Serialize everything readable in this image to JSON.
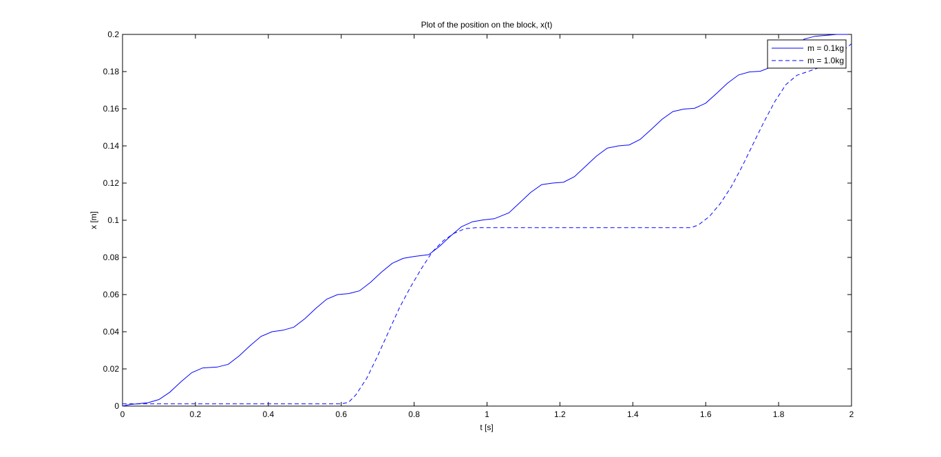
{
  "chart_data": {
    "type": "line",
    "title": "Plot of the position on the block, x(t)",
    "xlabel": "t [s]",
    "ylabel": "x [m]",
    "xlim": [
      0,
      2
    ],
    "ylim": [
      0,
      0.2
    ],
    "xticks": [
      "0",
      "0.2",
      "0.4",
      "0.6",
      "0.8",
      "1",
      "1.2",
      "1.4",
      "1.6",
      "1.8",
      "2"
    ],
    "yticks": [
      "0",
      "0.02",
      "0.04",
      "0.06",
      "0.08",
      "0.1",
      "0.12",
      "0.14",
      "0.16",
      "0.18",
      "0.2"
    ],
    "grid": false,
    "legend_position": "top-right",
    "series": [
      {
        "name": "m = 0.1kg",
        "style": "solid",
        "color": "#0000ff",
        "x": [
          0,
          0.02,
          0.04,
          0.07,
          0.1,
          0.13,
          0.16,
          0.19,
          0.22,
          0.26,
          0.29,
          0.32,
          0.35,
          0.38,
          0.41,
          0.44,
          0.47,
          0.5,
          0.53,
          0.56,
          0.59,
          0.62,
          0.65,
          0.68,
          0.71,
          0.74,
          0.77,
          0.8,
          0.84,
          0.87,
          0.9,
          0.93,
          0.96,
          0.99,
          1.02,
          1.06,
          1.09,
          1.12,
          1.15,
          1.18,
          1.21,
          1.24,
          1.27,
          1.3,
          1.33,
          1.36,
          1.39,
          1.42,
          1.45,
          1.48,
          1.51,
          1.54,
          1.57,
          1.6,
          1.63,
          1.66,
          1.69,
          1.72,
          1.75,
          1.78,
          1.81,
          1.84,
          1.87,
          1.9,
          1.93,
          1.96,
          1.99
        ],
        "values": [
          0,
          0.0008,
          0.0012,
          0.0018,
          0.0035,
          0.0075,
          0.013,
          0.018,
          0.0205,
          0.021,
          0.0225,
          0.027,
          0.0325,
          0.0375,
          0.04,
          0.0408,
          0.0425,
          0.047,
          0.0525,
          0.0575,
          0.06,
          0.0605,
          0.062,
          0.0665,
          0.072,
          0.0768,
          0.0795,
          0.0805,
          0.0815,
          0.086,
          0.0915,
          0.0965,
          0.0992,
          0.1002,
          0.1008,
          0.104,
          0.1095,
          0.115,
          0.1192,
          0.12,
          0.1205,
          0.1235,
          0.129,
          0.1345,
          0.1388,
          0.14,
          0.1405,
          0.1435,
          0.1488,
          0.1543,
          0.1585,
          0.1598,
          0.1603,
          0.163,
          0.1683,
          0.1738,
          0.1782,
          0.1798,
          0.1802,
          0.1825,
          0.1875,
          0.193,
          0.1975,
          0.199,
          0.1995,
          0.2,
          0.2
        ]
      },
      {
        "name": "m = 1.0kg",
        "style": "dashed",
        "color": "#0000ff",
        "x": [
          0,
          0.1,
          0.2,
          0.3,
          0.4,
          0.5,
          0.6,
          0.62,
          0.64,
          0.67,
          0.7,
          0.73,
          0.76,
          0.79,
          0.82,
          0.85,
          0.88,
          0.91,
          0.94,
          0.97,
          1.0,
          1.1,
          1.2,
          1.3,
          1.4,
          1.5,
          1.56,
          1.58,
          1.61,
          1.64,
          1.67,
          1.7,
          1.73,
          1.76,
          1.79,
          1.82,
          1.85,
          1.88,
          1.91,
          1.94,
          1.97,
          2.0
        ],
        "values": [
          0.0012,
          0.0012,
          0.0012,
          0.0012,
          0.0012,
          0.0012,
          0.0012,
          0.002,
          0.006,
          0.015,
          0.027,
          0.04,
          0.053,
          0.064,
          0.074,
          0.083,
          0.089,
          0.093,
          0.0955,
          0.096,
          0.096,
          0.096,
          0.096,
          0.096,
          0.096,
          0.096,
          0.096,
          0.0975,
          0.102,
          0.109,
          0.118,
          0.129,
          0.141,
          0.153,
          0.164,
          0.173,
          0.178,
          0.18,
          0.182,
          0.185,
          0.19,
          0.195
        ]
      }
    ]
  }
}
